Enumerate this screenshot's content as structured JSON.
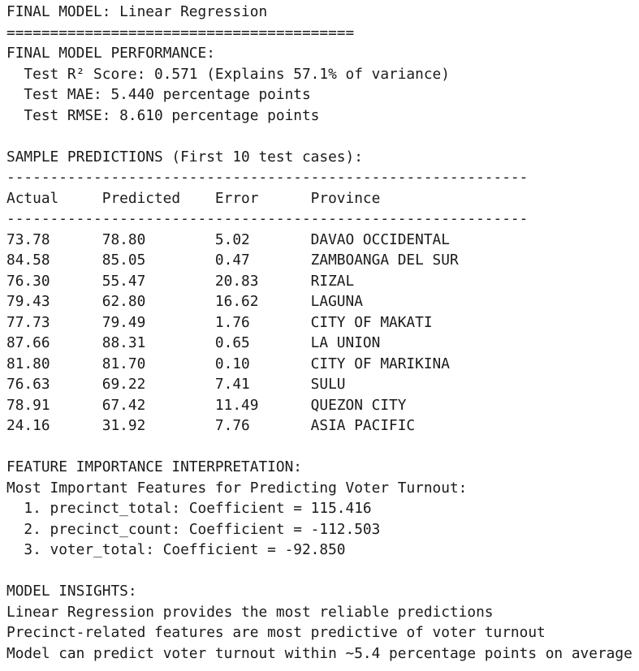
{
  "header": {
    "title": "FINAL MODEL: Linear Regression",
    "rule": "========================================"
  },
  "performance": {
    "heading": "FINAL MODEL PERFORMANCE:",
    "lines": [
      "Test R² Score: 0.571 (Explains 57.1% of variance)",
      "Test MAE: 5.440 percentage points",
      "Test RMSE: 8.610 percentage points"
    ]
  },
  "predictions": {
    "heading": "SAMPLE PREDICTIONS (First 10 test cases):",
    "rule": "------------------------------------------------------------",
    "columns": [
      "Actual",
      "Predicted",
      "Error",
      "Province"
    ],
    "rows": [
      [
        "73.78",
        "78.80",
        "5.02",
        "DAVAO OCCIDENTAL"
      ],
      [
        "84.58",
        "85.05",
        "0.47",
        "ZAMBOANGA DEL SUR"
      ],
      [
        "76.30",
        "55.47",
        "20.83",
        "RIZAL"
      ],
      [
        "79.43",
        "62.80",
        "16.62",
        "LAGUNA"
      ],
      [
        "77.73",
        "79.49",
        "1.76",
        "CITY OF MAKATI"
      ],
      [
        "87.66",
        "88.31",
        "0.65",
        "LA UNION"
      ],
      [
        "81.80",
        "81.70",
        "0.10",
        "CITY OF MARIKINA"
      ],
      [
        "76.63",
        "69.22",
        "7.41",
        "SULU"
      ],
      [
        "78.91",
        "67.42",
        "11.49",
        "QUEZON CITY"
      ],
      [
        "24.16",
        "31.92",
        "7.76",
        "ASIA PACIFIC"
      ]
    ]
  },
  "features": {
    "heading": "FEATURE IMPORTANCE INTERPRETATION:",
    "subheading": "Most Important Features for Predicting Voter Turnout:",
    "items": [
      "1. precinct_total: Coefficient = 115.416",
      "2. precinct_count: Coefficient = -112.503",
      "3. voter_total: Coefficient = -92.850"
    ]
  },
  "insights": {
    "heading": "MODEL INSIGHTS:",
    "lines": [
      "Linear Regression provides the most reliable predictions",
      "Precinct-related features are most predictive of voter turnout",
      "Model can predict voter turnout within ~5.4 percentage points on average"
    ]
  }
}
